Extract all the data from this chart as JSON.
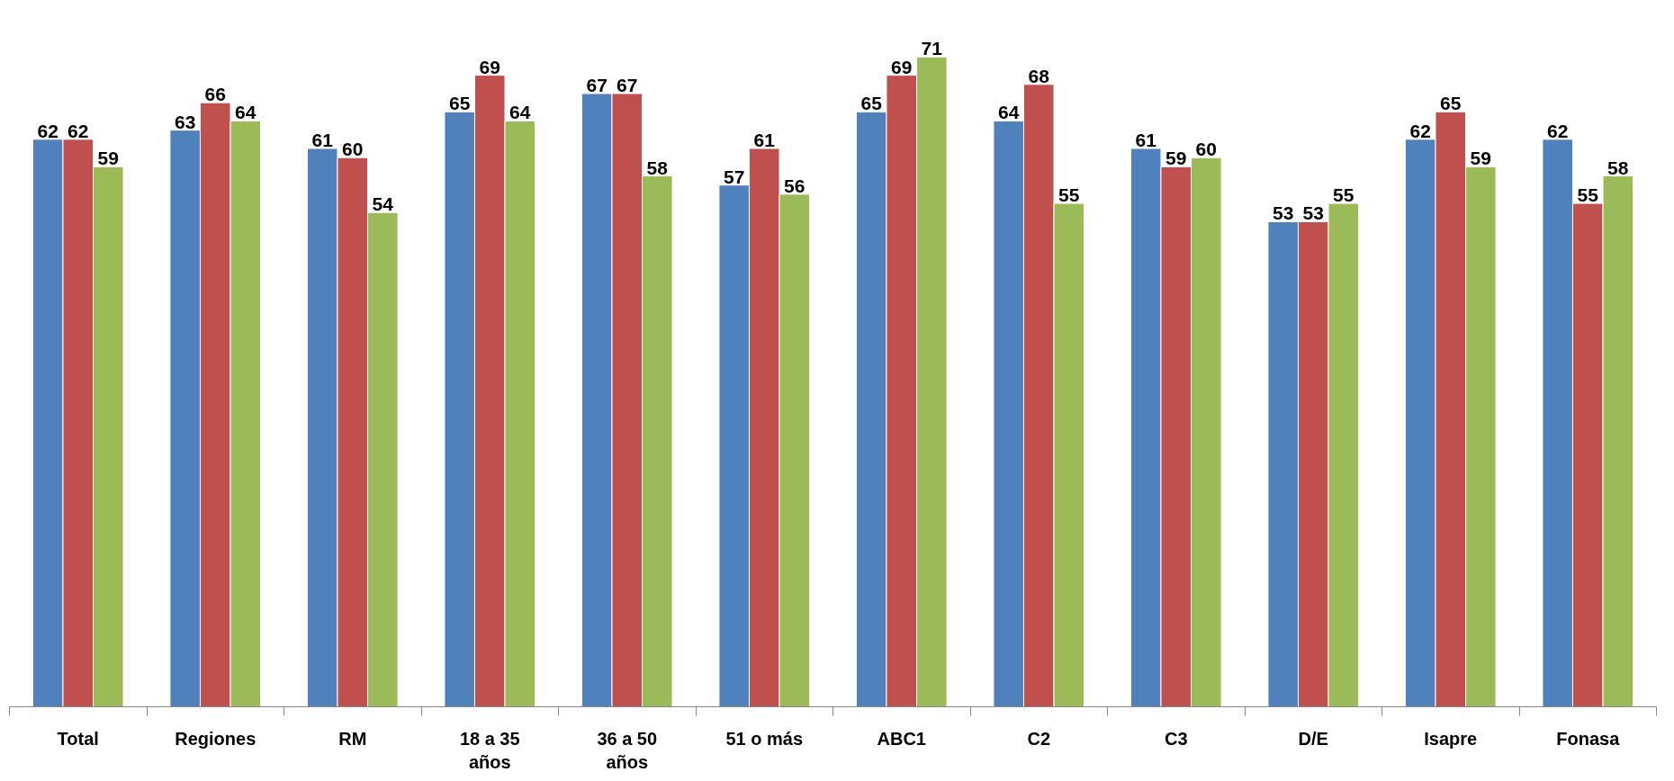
{
  "chart_data": {
    "type": "bar",
    "categories": [
      "Total",
      "Regiones",
      "RM",
      "18 a 35 años",
      "36 a 50 años",
      "51 o más",
      "ABC1",
      "C2",
      "C3",
      "D/E",
      "Isapre",
      "Fonasa"
    ],
    "series": [
      {
        "color": "#4f81bd",
        "values": [
          62,
          63,
          61,
          65,
          67,
          57,
          65,
          64,
          61,
          53,
          62,
          62
        ]
      },
      {
        "color": "#c0504d",
        "values": [
          62,
          66,
          60,
          69,
          67,
          61,
          69,
          68,
          59,
          53,
          65,
          55
        ]
      },
      {
        "color": "#9bbb59",
        "values": [
          59,
          64,
          54,
          64,
          58,
          56,
          71,
          55,
          60,
          55,
          59,
          58
        ]
      }
    ],
    "data_labels": true
  }
}
